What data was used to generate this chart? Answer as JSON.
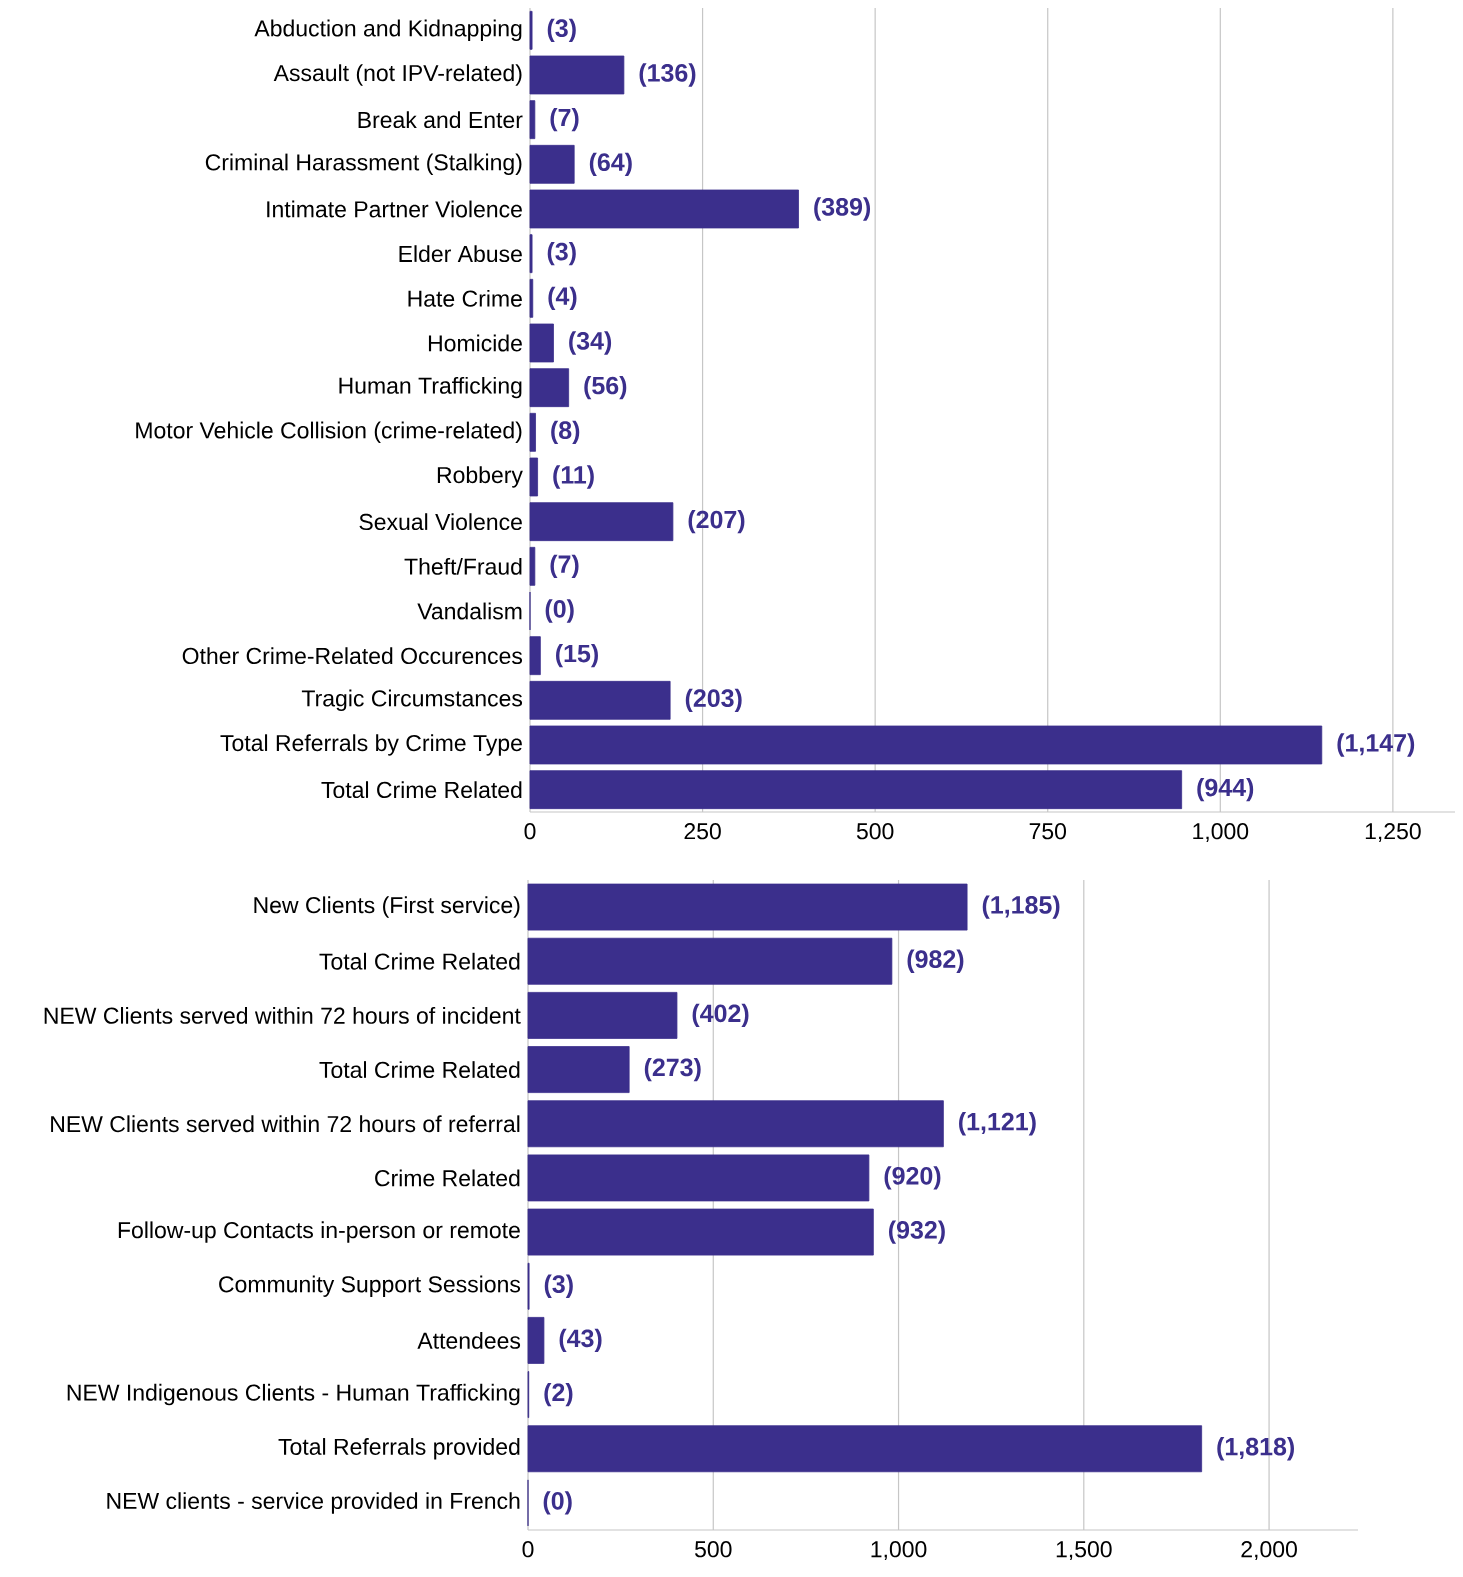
{
  "chart_data": [
    {
      "type": "bar",
      "orientation": "horizontal",
      "color": "#3b2f8c",
      "grid": "x",
      "categories": [
        "Abduction and Kidnapping",
        "Assault (not IPV-related)",
        "Break and Enter",
        "Criminal Harassment (Stalking)",
        "Intimate Partner Violence",
        "Elder Abuse",
        "Hate Crime",
        "Homicide",
        "Human Trafficking",
        "Motor Vehicle Collision (crime-related)",
        "Robbery",
        "Sexual Violence",
        "Theft/Fraud",
        "Vandalism",
        "Other Crime-Related Occurences",
        "Tragic Circumstances",
        "Total Referrals by Crime Type",
        "Total Crime Related"
      ],
      "values": [
        3,
        136,
        7,
        64,
        389,
        3,
        4,
        34,
        56,
        8,
        11,
        207,
        7,
        0,
        15,
        203,
        1147,
        944
      ],
      "value_labels": [
        "(3)",
        "(136)",
        "(7)",
        "(64)",
        "(389)",
        "(3)",
        "(4)",
        "(34)",
        "(56)",
        "(8)",
        "(11)",
        "(207)",
        "(7)",
        "(0)",
        "(15)",
        "(203)",
        "(1,147)",
        "(944)"
      ],
      "xlim": [
        0,
        1340
      ],
      "xticks": [
        0,
        250,
        500,
        750,
        {
          "value": 1000,
          "label": "1,000"
        },
        {
          "value": 1250,
          "label": "1,250"
        }
      ]
    },
    {
      "type": "bar",
      "orientation": "horizontal",
      "color": "#3b2f8c",
      "grid": "x",
      "categories": [
        "New Clients (First service)",
        "Total Crime Related",
        "NEW Clients served within 72 hours of incident",
        "Total Crime Related",
        "NEW Clients served within 72 hours of referral",
        "Crime Related",
        "Follow-up Contacts in-person or remote",
        "Community Support Sessions",
        "Attendees",
        "NEW Indigenous Clients - Human Trafficking",
        "Total Referrals provided",
        "NEW clients - service provided in French"
      ],
      "values": [
        1185,
        982,
        402,
        273,
        1121,
        920,
        932,
        3,
        43,
        2,
        1818,
        0
      ],
      "value_labels": [
        "(1,185)",
        "(982)",
        "(402)",
        "(273)",
        "(1,121)",
        "(920)",
        "(932)",
        "(3)",
        "(43)",
        "(2)",
        "(1,818)",
        "(0)"
      ],
      "xlim": [
        0,
        2240
      ],
      "xticks": [
        0,
        500,
        {
          "value": 1000,
          "label": "1,000"
        },
        {
          "value": 1500,
          "label": "1,500"
        },
        {
          "value": 2000,
          "label": "2,000"
        }
      ]
    }
  ]
}
